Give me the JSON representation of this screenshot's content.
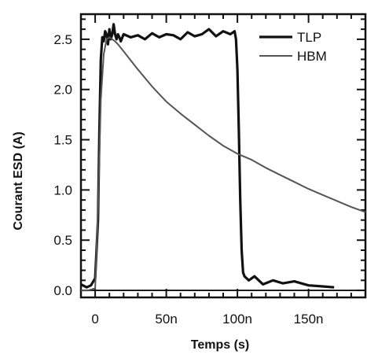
{
  "chart_data": {
    "type": "line",
    "title": "",
    "xlabel": "Temps (s)",
    "ylabel": "Courant ESD (A)",
    "xlim": [
      -10,
      190
    ],
    "ylim": [
      -0.07,
      2.75
    ],
    "x_ticks": [
      0,
      50,
      100,
      150
    ],
    "x_tick_labels": [
      "0",
      "50n",
      "100n",
      "150n"
    ],
    "y_ticks": [
      0.0,
      0.5,
      1.0,
      1.5,
      2.0,
      2.5
    ],
    "y_tick_labels": [
      "0.0",
      "0.5",
      "1.0",
      "1.5",
      "2.0",
      "2.5"
    ],
    "grid": false,
    "legend_position": "top-right",
    "series": [
      {
        "name": "TLP",
        "color": "#111111",
        "x": [
          -10,
          -6,
          -3,
          0,
          2,
          3,
          4,
          5,
          6,
          7,
          8,
          9,
          10,
          11,
          12,
          13,
          14,
          15,
          16,
          17,
          18,
          20,
          25,
          30,
          35,
          40,
          45,
          50,
          55,
          60,
          65,
          70,
          75,
          80,
          85,
          90,
          95,
          98,
          99,
          100,
          101,
          102,
          103,
          104,
          105,
          108,
          112,
          118,
          125,
          132,
          140,
          150,
          160,
          168
        ],
        "values": [
          0.06,
          0.03,
          0.05,
          0.12,
          0.7,
          1.6,
          2.3,
          2.52,
          2.48,
          2.58,
          2.55,
          2.45,
          2.6,
          2.5,
          2.55,
          2.65,
          2.55,
          2.5,
          2.55,
          2.52,
          2.48,
          2.55,
          2.52,
          2.54,
          2.5,
          2.56,
          2.52,
          2.55,
          2.54,
          2.5,
          2.57,
          2.53,
          2.55,
          2.6,
          2.53,
          2.58,
          2.55,
          2.58,
          2.5,
          2.2,
          1.6,
          0.9,
          0.4,
          0.18,
          0.14,
          0.1,
          0.14,
          0.06,
          0.1,
          0.07,
          0.09,
          0.05,
          0.04,
          0.03
        ]
      },
      {
        "name": "HBM",
        "color": "#555555",
        "x": [
          -10,
          -5,
          0,
          2,
          4,
          6,
          8,
          10,
          12,
          14,
          16,
          20,
          30,
          40,
          50,
          60,
          70,
          80,
          90,
          100,
          110,
          120,
          130,
          140,
          150,
          160,
          170,
          180,
          190
        ],
        "values": [
          0.0,
          0.0,
          0.02,
          0.8,
          1.9,
          2.35,
          2.5,
          2.52,
          2.5,
          2.48,
          2.45,
          2.38,
          2.2,
          2.03,
          1.88,
          1.76,
          1.65,
          1.54,
          1.44,
          1.36,
          1.3,
          1.22,
          1.15,
          1.08,
          1.01,
          0.95,
          0.89,
          0.83,
          0.78
        ]
      }
    ]
  }
}
